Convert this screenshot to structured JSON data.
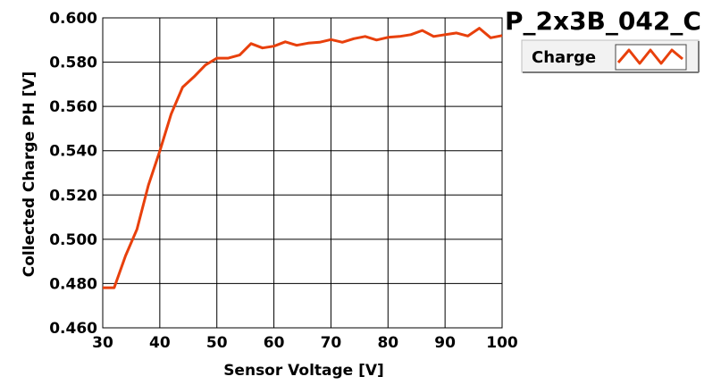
{
  "chart_data": {
    "type": "line",
    "title": "P_2x3B_042_C",
    "xlabel": "Sensor Voltage [V]",
    "ylabel": "Collected Charge PH [V]",
    "xlim": [
      30,
      100
    ],
    "ylim": [
      0.46,
      0.6
    ],
    "xticks": [
      "30",
      "40",
      "50",
      "60",
      "70",
      "80",
      "90",
      "100"
    ],
    "yticks": [
      "0.460",
      "0.480",
      "0.500",
      "0.520",
      "0.540",
      "0.560",
      "0.580",
      "0.600"
    ],
    "grid": true,
    "legend_position": "top-right",
    "line_color": "#e8400c",
    "series": [
      {
        "name": "Charge",
        "x": [
          30,
          32,
          34,
          36,
          38,
          40,
          42,
          44,
          46,
          48,
          50,
          52,
          54,
          56,
          58,
          60,
          62,
          64,
          66,
          68,
          70,
          72,
          74,
          76,
          78,
          80,
          82,
          84,
          86,
          88,
          90,
          92,
          94,
          96,
          98,
          100
        ],
        "y": [
          0.4781,
          0.4781,
          0.4925,
          0.5045,
          0.5244,
          0.5399,
          0.5566,
          0.5687,
          0.5734,
          0.5787,
          0.5818,
          0.5818,
          0.5832,
          0.5884,
          0.5864,
          0.5872,
          0.5892,
          0.5876,
          0.5886,
          0.589,
          0.5902,
          0.589,
          0.5906,
          0.5916,
          0.59,
          0.5912,
          0.5916,
          0.5924,
          0.5943,
          0.5916,
          0.5924,
          0.5932,
          0.5918,
          0.5953,
          0.591,
          0.592
        ]
      }
    ]
  }
}
